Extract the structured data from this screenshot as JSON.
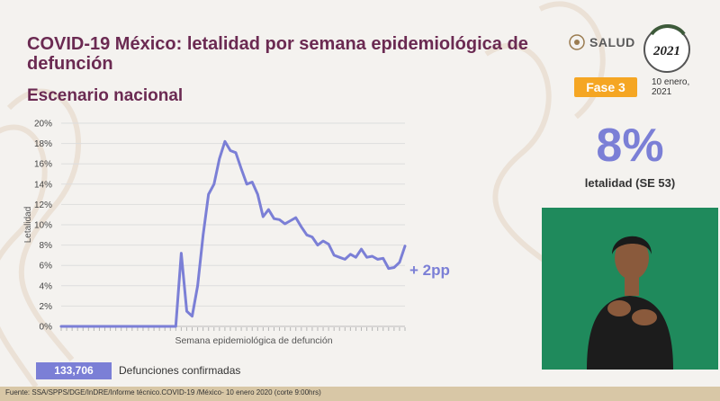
{
  "header": {
    "title": "COVID-19 México: letalidad por semana epidemiológica de defunción",
    "subtitle": "Escenario nacional"
  },
  "logo": {
    "salud": "SALUD",
    "seal_year": "2021"
  },
  "phase": "Fase 3",
  "date": "10 enero, 2021",
  "kpi": {
    "value": "8%",
    "label": "letalidad (SE 53)"
  },
  "delta": "+ 2pp",
  "stats": {
    "count": "133,706",
    "count_label": "Defunciones confirmadas"
  },
  "footer": {
    "source": "Fuente: SSA/SPPS/DGE/InDRE/Informe técnico.COVID-19 /México- 10 enero 2020 (corte 9:00hrs)"
  },
  "colors": {
    "accent": "#7b7fd6",
    "title": "#6b2a52",
    "phase": "#f5a623",
    "video_bg": "#1f8a5c"
  },
  "chart_data": {
    "type": "line",
    "xlabel": "Semana epidemiológica de defunción",
    "ylabel": "Letalidad",
    "y_ticks": [
      "0%",
      "2%",
      "4%",
      "6%",
      "8%",
      "10%",
      "12%",
      "14%",
      "16%",
      "18%",
      "20%"
    ],
    "ylim": [
      0,
      20
    ],
    "grid": true,
    "series": [
      {
        "values": [
          0,
          0,
          0,
          0,
          0,
          0,
          0,
          0,
          0,
          0,
          0,
          0,
          0,
          0,
          0,
          0,
          0,
          0,
          0,
          0,
          0,
          0,
          7.2,
          1.5,
          1.0,
          4.0,
          9.0,
          13.0,
          14.0,
          16.5,
          18.2,
          17.3,
          17.1,
          15.5,
          14.0,
          14.2,
          13.0,
          10.8,
          11.5,
          10.6,
          10.5,
          10.1,
          10.4,
          10.7,
          9.8,
          9.0,
          8.8,
          8.0,
          8.4,
          8.1,
          7.0,
          6.8,
          6.6,
          7.1,
          6.8,
          7.6,
          6.8,
          6.9,
          6.6,
          6.7,
          5.7,
          5.8,
          6.3,
          7.9
        ]
      }
    ]
  }
}
